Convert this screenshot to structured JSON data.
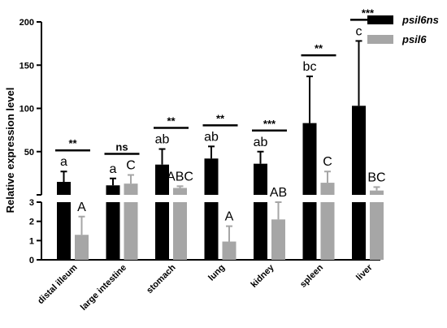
{
  "chart_data": {
    "type": "bar",
    "ylabel": "Relative expression level",
    "categories": [
      "distal illeum",
      "large intestine",
      "stomach",
      "lung",
      "kidney",
      "spleen",
      "liver"
    ],
    "y_axis_break": true,
    "ylim_lower": [
      0,
      3
    ],
    "ylim_upper": [
      0,
      200
    ],
    "yticks_lower": [
      "0",
      "1",
      "2",
      "3"
    ],
    "yticks_upper": [
      "50",
      "100",
      "150",
      "200"
    ],
    "legend_position": "top-right",
    "series": [
      {
        "name": "psil6ns",
        "color": "#000000",
        "values": [
          15,
          11,
          35,
          42,
          36,
          83,
          103
        ],
        "errors": [
          12,
          8,
          18,
          14,
          14,
          54,
          75
        ],
        "letters": [
          "a",
          "a",
          "ab",
          "ab",
          "ab",
          "bc",
          "c"
        ]
      },
      {
        "name": "psil6",
        "color": "#a6a6a6",
        "values": [
          1.3,
          13,
          8,
          0.95,
          2.1,
          14,
          5
        ],
        "errors": [
          0.95,
          10,
          2,
          0.8,
          0.9,
          13,
          4
        ],
        "letters": [
          "A",
          "C",
          "ABC",
          "A",
          "AB",
          "C",
          "BC"
        ]
      }
    ],
    "significance": [
      "**",
      "ns",
      "**",
      "**",
      "***",
      "**",
      "***"
    ]
  }
}
